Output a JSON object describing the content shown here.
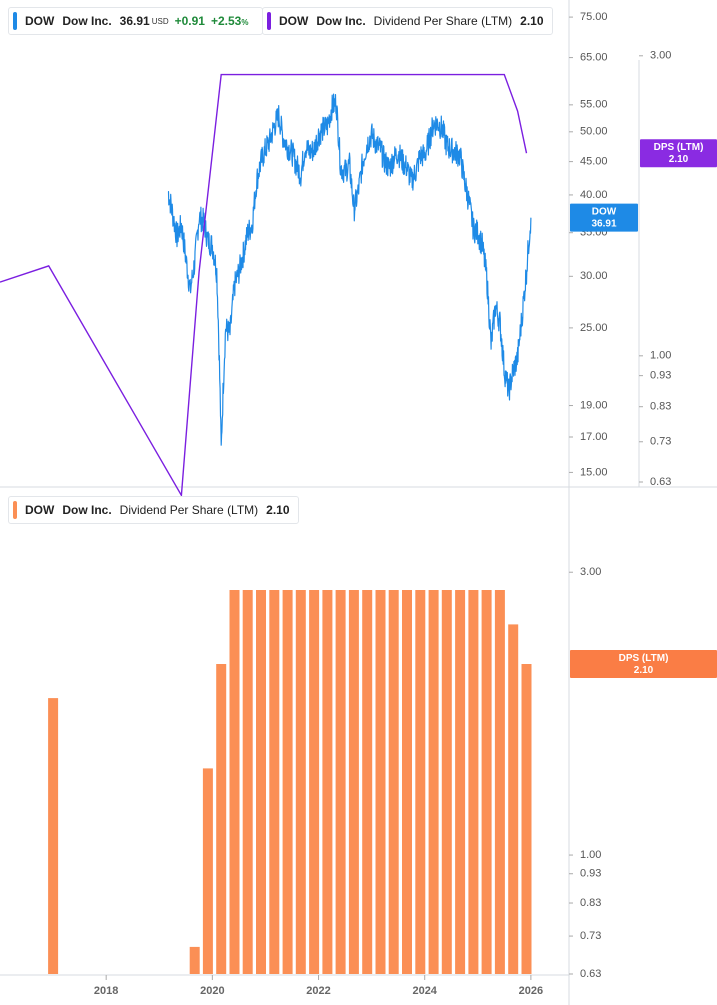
{
  "colors": {
    "price_line": "#1e8ae6",
    "dps_line": "#7b1fe0",
    "dps_bar": "#fb8f55",
    "price_tag": "#1e8ae6",
    "dps_tag_top": "#8a2be2",
    "dps_tag_bottom": "#fa7d45",
    "positive": "#1f8a3a"
  },
  "legend_top_price": {
    "ticker": "DOW",
    "name": "Dow Inc.",
    "price": "36.91",
    "currency": "USD",
    "change": "+0.91",
    "change_pct": "+2.53",
    "pct_sign": "%"
  },
  "legend_top_dps": {
    "ticker": "DOW",
    "name": "Dow Inc.",
    "metric": "Dividend Per Share (LTM)",
    "value": "2.10"
  },
  "legend_bottom_dps": {
    "ticker": "DOW",
    "name": "Dow Inc.",
    "metric": "Dividend Per Share (LTM)",
    "value": "2.10"
  },
  "chart_data": [
    {
      "type": "line",
      "panel": "top",
      "scale": "log",
      "price_axis": {
        "ticks": [
          "75.00",
          "65.00",
          "55.00",
          "50.00",
          "45.00",
          "40.00",
          "35.00",
          "30.00",
          "25.00",
          "19.00",
          "17.00",
          "15.00"
        ],
        "ylim": [
          14.5,
          78
        ]
      },
      "dps_axis": {
        "ticks": [
          "3.00",
          "1.00",
          "0.93",
          "0.83",
          "0.73",
          "0.63"
        ],
        "ylim": [
          0.63,
          3.6
        ]
      },
      "x_range": [
        "2016-01",
        "2026-06"
      ],
      "series": [
        {
          "name": "DOW",
          "axis": "price",
          "values": [
            [
              "2019-03",
              40.5
            ],
            [
              "2019-04",
              37.5
            ],
            [
              "2019-05",
              34.5
            ],
            [
              "2019-06",
              36.0
            ],
            [
              "2019-07",
              32.0
            ],
            [
              "2019-08",
              28.5
            ],
            [
              "2019-09",
              31.5
            ],
            [
              "2019-10",
              37.0
            ],
            [
              "2019-11",
              36.5
            ],
            [
              "2019-12",
              34.0
            ],
            [
              "2020-01",
              33.5
            ],
            [
              "2020-02",
              30.5
            ],
            [
              "2020-03",
              16.2
            ],
            [
              "2020-04",
              25.0
            ],
            [
              "2020-05",
              24.5
            ],
            [
              "2020-06",
              29.0
            ],
            [
              "2020-07",
              30.5
            ],
            [
              "2020-08",
              32.5
            ],
            [
              "2020-09",
              35.0
            ],
            [
              "2020-10",
              36.0
            ],
            [
              "2020-11",
              42.0
            ],
            [
              "2020-12",
              45.0
            ],
            [
              "2021-01",
              47.0
            ],
            [
              "2021-02",
              48.5
            ],
            [
              "2021-03",
              51.0
            ],
            [
              "2021-04",
              53.0
            ],
            [
              "2021-05",
              49.0
            ],
            [
              "2021-06",
              47.5
            ],
            [
              "2021-07",
              46.5
            ],
            [
              "2021-08",
              44.5
            ],
            [
              "2021-09",
              43.0
            ],
            [
              "2021-10",
              47.5
            ],
            [
              "2021-11",
              46.5
            ],
            [
              "2021-12",
              47.0
            ],
            [
              "2022-01",
              49.5
            ],
            [
              "2022-02",
              50.5
            ],
            [
              "2022-03",
              51.0
            ],
            [
              "2022-04",
              54.5
            ],
            [
              "2022-05",
              55.5
            ],
            [
              "2022-06",
              44.0
            ],
            [
              "2022-07",
              43.5
            ],
            [
              "2022-08",
              44.5
            ],
            [
              "2022-09",
              38.0
            ],
            [
              "2022-10",
              40.5
            ],
            [
              "2022-11",
              45.0
            ],
            [
              "2022-12",
              48.0
            ],
            [
              "2023-01",
              49.5
            ],
            [
              "2023-02",
              48.0
            ],
            [
              "2023-03",
              47.0
            ],
            [
              "2023-04",
              45.0
            ],
            [
              "2023-05",
              44.0
            ],
            [
              "2023-06",
              45.5
            ],
            [
              "2023-07",
              46.5
            ],
            [
              "2023-08",
              45.0
            ],
            [
              "2023-09",
              44.0
            ],
            [
              "2023-10",
              42.0
            ],
            [
              "2023-11",
              43.5
            ],
            [
              "2023-12",
              46.0
            ],
            [
              "2024-01",
              46.0
            ],
            [
              "2024-02",
              48.5
            ],
            [
              "2024-03",
              51.5
            ],
            [
              "2024-04",
              51.5
            ],
            [
              "2024-05",
              50.5
            ],
            [
              "2024-06",
              47.5
            ],
            [
              "2024-07",
              47.0
            ],
            [
              "2024-08",
              46.5
            ],
            [
              "2024-09",
              46.0
            ],
            [
              "2024-10",
              42.0
            ],
            [
              "2024-11",
              39.0
            ],
            [
              "2024-12",
              35.5
            ],
            [
              "2025-01",
              35.0
            ],
            [
              "2025-02",
              33.5
            ],
            [
              "2025-03",
              30.0
            ],
            [
              "2025-04",
              23.5
            ],
            [
              "2025-05",
              27.0
            ],
            [
              "2025-06",
              25.5
            ],
            [
              "2025-07",
              21.5
            ],
            [
              "2025-08",
              20.0
            ],
            [
              "2025-09",
              21.5
            ],
            [
              "2025-10",
              22.5
            ],
            [
              "2025-11",
              26.0
            ],
            [
              "2025-12",
              30.5
            ],
            [
              "2026-01",
              36.91
            ]
          ]
        },
        {
          "name": "DPS (LTM)",
          "axis": "dps",
          "values": [
            [
              "2016-01",
              1.31
            ],
            [
              "2016-12",
              1.39
            ],
            [
              "2019-06",
              0.6
            ],
            [
              "2019-10",
              1.36
            ],
            [
              "2020-03",
              2.8
            ],
            [
              "2022-01",
              2.8
            ],
            [
              "2025-07",
              2.8
            ],
            [
              "2025-10",
              2.45
            ],
            [
              "2025-12",
              2.1
            ]
          ]
        }
      ],
      "tags": [
        {
          "label": "DOW",
          "value": "36.91"
        },
        {
          "label": "DPS (LTM)",
          "value": "2.10"
        }
      ]
    },
    {
      "type": "bar",
      "panel": "bottom",
      "scale": "log",
      "ylabel": "",
      "ylim": [
        0.63,
        3.4
      ],
      "y_ticks": [
        "3.00",
        "1.00",
        "0.93",
        "0.83",
        "0.73",
        "0.63"
      ],
      "x_range": [
        "2016-01",
        "2026-06"
      ],
      "x_ticks": [
        "2018",
        "2020",
        "2022",
        "2024",
        "2026"
      ],
      "series": [
        {
          "name": "Dividend Per Share (LTM)",
          "values": [
            [
              "2017-01",
              1.84
            ],
            [
              "2019-09",
              0.7
            ],
            [
              "2019-12",
              1.4
            ],
            [
              "2020-03",
              2.1
            ],
            [
              "2020-06",
              2.8
            ],
            [
              "2020-09",
              2.8
            ],
            [
              "2020-12",
              2.8
            ],
            [
              "2021-03",
              2.8
            ],
            [
              "2021-06",
              2.8
            ],
            [
              "2021-09",
              2.8
            ],
            [
              "2021-12",
              2.8
            ],
            [
              "2022-03",
              2.8
            ],
            [
              "2022-06",
              2.8
            ],
            [
              "2022-09",
              2.8
            ],
            [
              "2022-12",
              2.8
            ],
            [
              "2023-03",
              2.8
            ],
            [
              "2023-06",
              2.8
            ],
            [
              "2023-09",
              2.8
            ],
            [
              "2023-12",
              2.8
            ],
            [
              "2024-03",
              2.8
            ],
            [
              "2024-06",
              2.8
            ],
            [
              "2024-09",
              2.8
            ],
            [
              "2024-12",
              2.8
            ],
            [
              "2025-03",
              2.8
            ],
            [
              "2025-06",
              2.8
            ],
            [
              "2025-09",
              2.45
            ],
            [
              "2025-12",
              2.1
            ]
          ]
        }
      ],
      "tags": [
        {
          "label": "DPS (LTM)",
          "value": "2.10"
        }
      ]
    }
  ]
}
